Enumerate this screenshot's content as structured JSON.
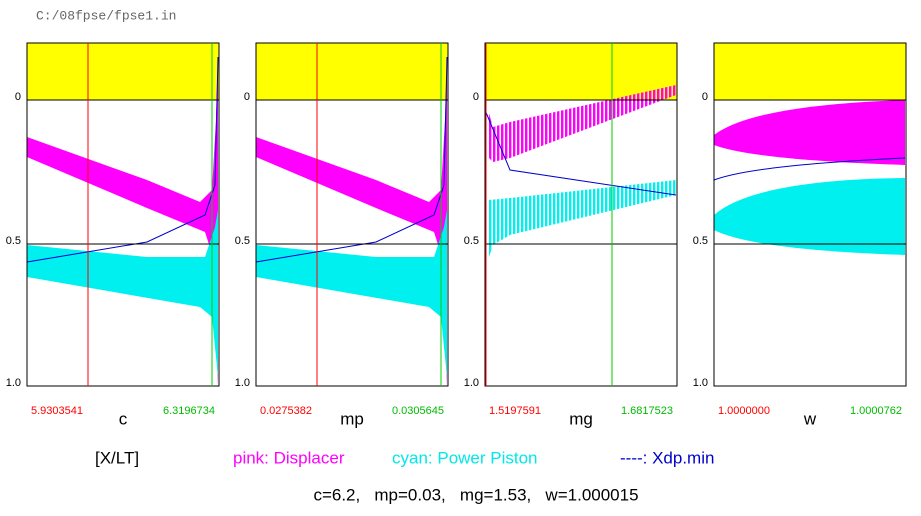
{
  "path": "C:/08fpse/fpse1.in",
  "y_labels": [
    "0",
    "0.5",
    "1.0"
  ],
  "panels": [
    {
      "name": "c",
      "left": "5.9303541",
      "right": "6.3196734"
    },
    {
      "name": "mp",
      "left": "0.0275382",
      "right": "0.0305645"
    },
    {
      "name": "mg",
      "left": "1.5197591",
      "right": "1.6817523"
    },
    {
      "name": "w",
      "left": "1.0000000",
      "right": "1.0000762"
    }
  ],
  "legend": {
    "key": "[X/LT]",
    "pink": "pink: Displacer",
    "cyan": "cyan: Power Piston",
    "blue": "----: Xdp.min"
  },
  "status": "c=6.2,   mp=0.03,   mg=1.53,   w=1.000015"
}
